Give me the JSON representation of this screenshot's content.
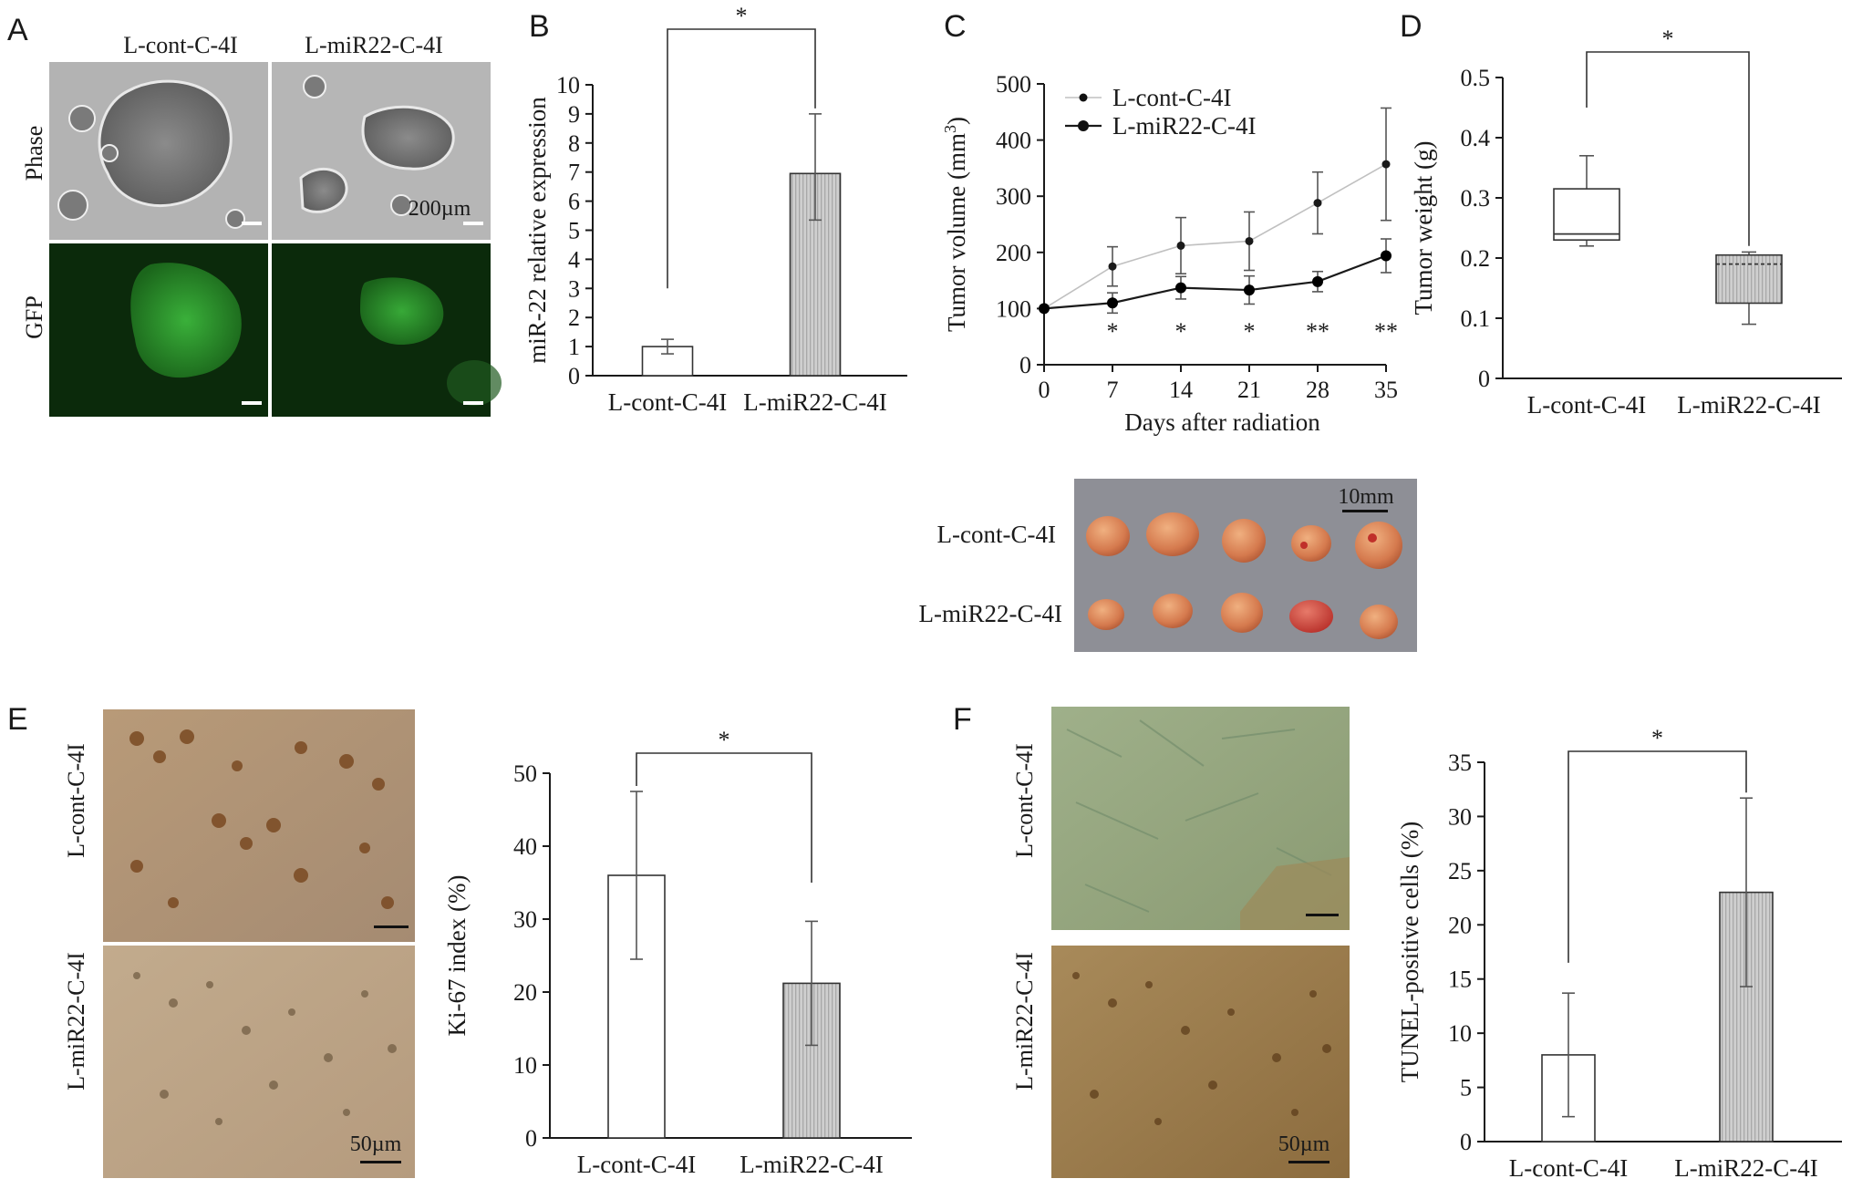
{
  "panels": {
    "A": {
      "label": "A",
      "col_labels": [
        "L-cont-C-4I",
        "L-miR22-C-4I"
      ],
      "row_labels": [
        "Phase",
        "GFP"
      ],
      "scale_text": "200µm"
    },
    "B": {
      "label": "B",
      "significance": "*",
      "chart_data": {
        "type": "bar",
        "categories": [
          "L-cont-C-4I",
          "L-miR22-C-4I"
        ],
        "values": [
          1.0,
          6.95
        ],
        "errors": [
          0.25,
          1.6
        ],
        "errors_high": [
          0.25,
          2.05
        ],
        "ylabel": "miR-22 relative expression",
        "ylim": [
          0,
          10
        ],
        "yticks": [
          0,
          1,
          2,
          3,
          4,
          5,
          6,
          7,
          8,
          9,
          10
        ],
        "colors": [
          "#ffffff",
          "#c8c8c8"
        ]
      }
    },
    "C": {
      "label": "C",
      "chart_data": {
        "type": "line",
        "x": [
          0,
          7,
          14,
          21,
          28,
          35
        ],
        "xlabel": "Days after radiation",
        "ylabel_main": "Tumor volume (mm",
        "ylabel_sup": "3",
        "ylabel_end": ")",
        "ylim": [
          0,
          500
        ],
        "yticks": [
          0,
          100,
          200,
          300,
          400,
          500
        ],
        "series": [
          {
            "name": "L-cont-C-4I",
            "values": [
              100,
              175,
              212,
              220,
              288,
              357
            ],
            "err": [
              0,
              35,
              50,
              52,
              55,
              100
            ],
            "color": "#c0c0c0"
          },
          {
            "name": "L-miR22-C-4I",
            "values": [
              100,
              110,
              137,
              133,
              148,
              194
            ],
            "err": [
              0,
              18,
              20,
              25,
              18,
              30
            ],
            "color": "#1a1a1a"
          }
        ],
        "significance": [
          "",
          "*",
          "*",
          "*",
          "**",
          "**"
        ],
        "legend_position": "top-left"
      }
    },
    "D": {
      "label": "D",
      "significance": "*",
      "chart_data": {
        "type": "box",
        "categories": [
          "L-cont-C-4I",
          "L-miR22-C-4I"
        ],
        "ylabel": "Tumor weight (g)",
        "ylim": [
          0,
          0.5
        ],
        "yticks": [
          0,
          0.1,
          0.2,
          0.3,
          0.4,
          0.5
        ],
        "boxes": [
          {
            "min": 0.22,
            "q1": 0.23,
            "median": 0.24,
            "q3": 0.315,
            "max": 0.37,
            "color": "#ffffff"
          },
          {
            "min": 0.09,
            "q1": 0.125,
            "median": 0.19,
            "q3": 0.205,
            "max": 0.21,
            "color": "#c8c8c8"
          }
        ]
      }
    },
    "tumor_photo": {
      "row_labels": [
        "L-cont-C-4I",
        "L-miR22-C-4I"
      ],
      "scale_text": "10mm"
    },
    "E": {
      "label": "E",
      "row_labels": [
        "L-cont-C-4I",
        "L-miR22-C-4I"
      ],
      "scale_text": "50µm",
      "significance": "*",
      "chart_data": {
        "type": "bar",
        "categories": [
          "L-cont-C-4I",
          "L-miR22-C-4I"
        ],
        "values": [
          36,
          21.2
        ],
        "errors": [
          11.5,
          8.5
        ],
        "ylabel": "Ki-67 index (%)",
        "ylim": [
          0,
          50
        ],
        "yticks": [
          0,
          10,
          20,
          30,
          40,
          50
        ],
        "colors": [
          "#ffffff",
          "#c8c8c8"
        ]
      }
    },
    "F": {
      "label": "F",
      "row_labels": [
        "L-cont-C-4I",
        "L-miR22-C-4I"
      ],
      "scale_text": "50µm",
      "significance": "*",
      "chart_data": {
        "type": "bar",
        "categories": [
          "L-cont-C-4I",
          "L-miR22-C-4I"
        ],
        "values": [
          8,
          23
        ],
        "errors": [
          5.7,
          8.7
        ],
        "ylabel": "TUNEL-positive cells (%)",
        "ylim": [
          0,
          35
        ],
        "yticks": [
          0,
          5,
          10,
          15,
          20,
          25,
          30,
          35
        ],
        "colors": [
          "#ffffff",
          "#c8c8c8"
        ]
      }
    }
  }
}
